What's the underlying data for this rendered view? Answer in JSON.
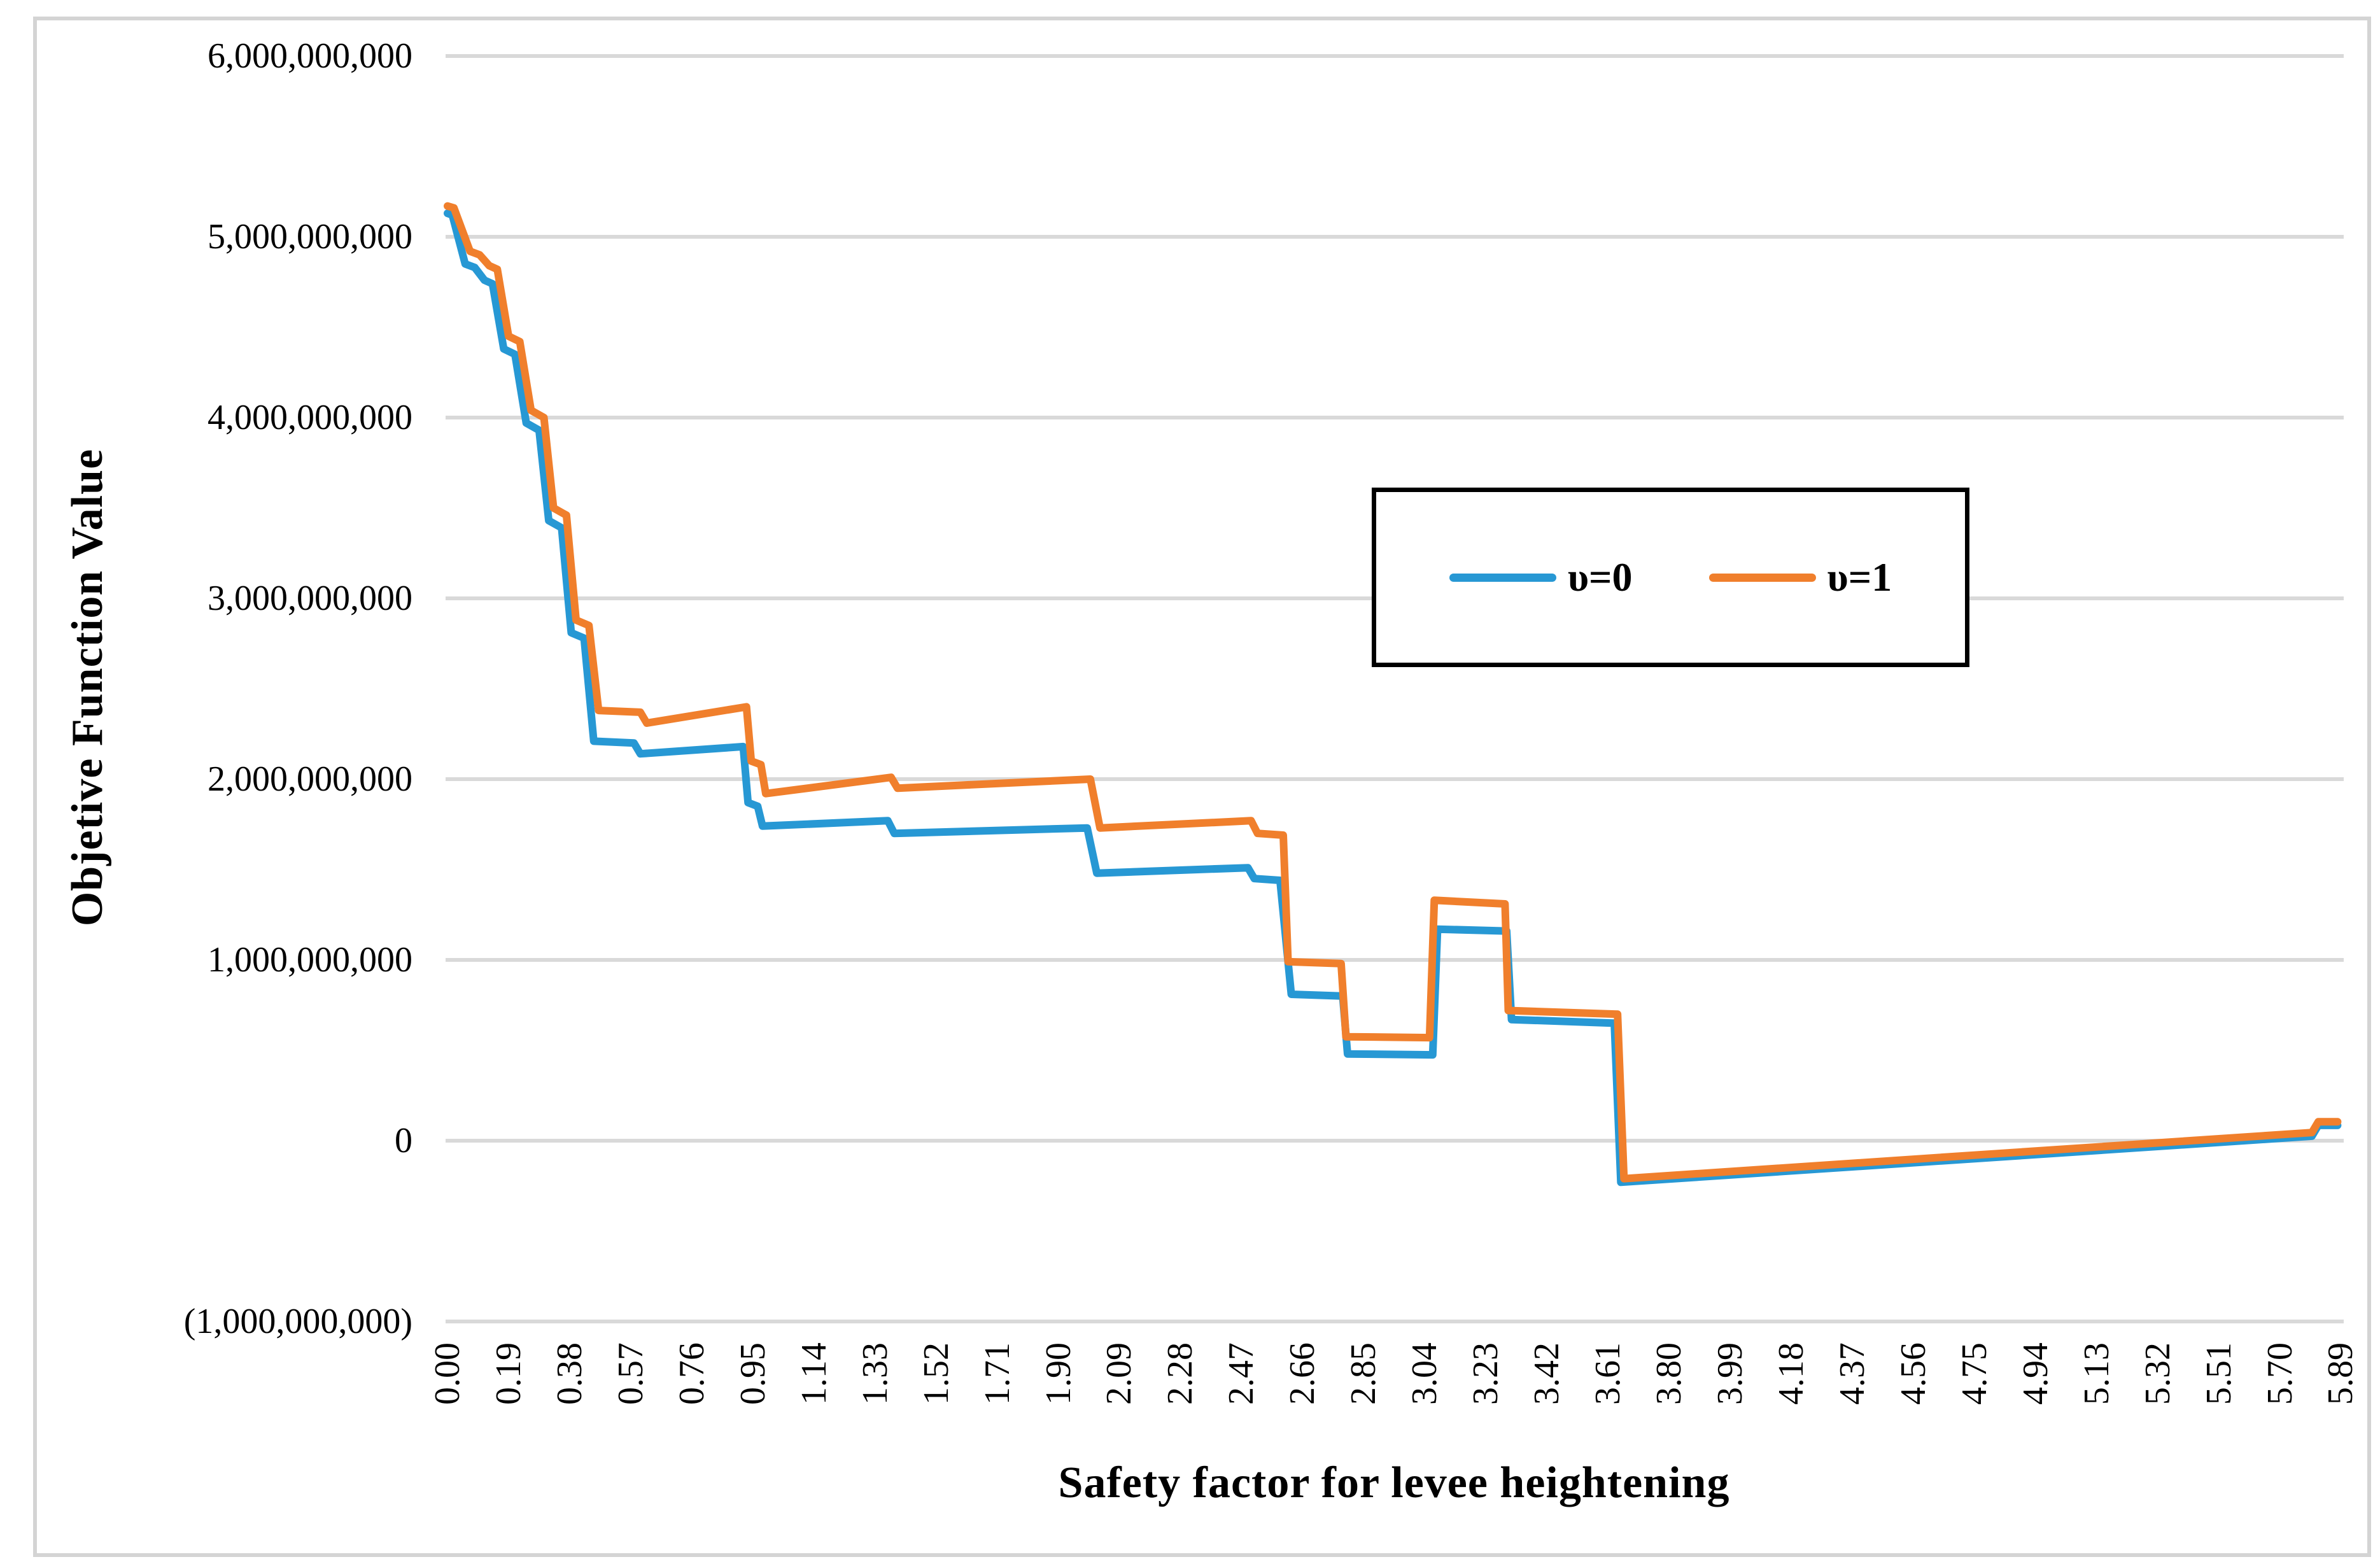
{
  "figure": {
    "y_axis_title": "Objetive Function Value",
    "x_axis_title": "Safety factor for levee heightening"
  },
  "legend": {
    "items": [
      {
        "label": "υ=0",
        "color": "#2798d4"
      },
      {
        "label": "υ=1",
        "color": "#f07f2c"
      }
    ]
  },
  "axes": {
    "y": {
      "ticks": [
        {
          "value": 6,
          "label": "6,000,000,000"
        },
        {
          "value": 5,
          "label": "5,000,000,000"
        },
        {
          "value": 4,
          "label": "4,000,000,000"
        },
        {
          "value": 3,
          "label": "3,000,000,000"
        },
        {
          "value": 2,
          "label": "2,000,000,000"
        },
        {
          "value": 1,
          "label": "1,000,000,000"
        },
        {
          "value": 0,
          "label": "0"
        },
        {
          "value": -1,
          "label": "(1,000,000,000)"
        }
      ]
    },
    "x": {
      "ticks": [
        {
          "value": 0.0,
          "label": "0.00"
        },
        {
          "value": 0.19,
          "label": "0.19"
        },
        {
          "value": 0.38,
          "label": "0.38"
        },
        {
          "value": 0.57,
          "label": "0.57"
        },
        {
          "value": 0.76,
          "label": "0.76"
        },
        {
          "value": 0.95,
          "label": "0.95"
        },
        {
          "value": 1.14,
          "label": "1.14"
        },
        {
          "value": 1.33,
          "label": "1.33"
        },
        {
          "value": 1.52,
          "label": "1.52"
        },
        {
          "value": 1.71,
          "label": "1.71"
        },
        {
          "value": 1.9,
          "label": "1.90"
        },
        {
          "value": 2.09,
          "label": "2.09"
        },
        {
          "value": 2.28,
          "label": "2.28"
        },
        {
          "value": 2.47,
          "label": "2.47"
        },
        {
          "value": 2.66,
          "label": "2.66"
        },
        {
          "value": 2.85,
          "label": "2.85"
        },
        {
          "value": 3.04,
          "label": "3.04"
        },
        {
          "value": 3.23,
          "label": "3.23"
        },
        {
          "value": 3.42,
          "label": "3.42"
        },
        {
          "value": 3.61,
          "label": "3.61"
        },
        {
          "value": 3.8,
          "label": "3.80"
        },
        {
          "value": 3.99,
          "label": "3.99"
        },
        {
          "value": 4.18,
          "label": "4.18"
        },
        {
          "value": 4.37,
          "label": "4.37"
        },
        {
          "value": 4.56,
          "label": "4.56"
        },
        {
          "value": 4.75,
          "label": "4.75"
        },
        {
          "value": 4.94,
          "label": "4.94"
        },
        {
          "value": 5.13,
          "label": "5.13"
        },
        {
          "value": 5.32,
          "label": "5.32"
        },
        {
          "value": 5.51,
          "label": "5.51"
        },
        {
          "value": 5.7,
          "label": "5.70"
        },
        {
          "value": 5.89,
          "label": "5.89"
        }
      ]
    }
  },
  "chart_data": {
    "type": "line",
    "title": "",
    "xlabel": "Safety factor for levee heightening",
    "ylabel": "Objetive Function Value",
    "xlim": [
      0,
      5.95
    ],
    "ylim": [
      -1000000000,
      6000000000
    ],
    "y_unit_scale": 1000000000,
    "gridlines": "horizontal, every 1,000,000,000",
    "legend_position": "inside upper right, boxed",
    "note": "step-shaped curves; y values below are in billions",
    "gridline_color": "#d9d9d9",
    "series": [
      {
        "name": "υ=0",
        "color": "#2798d4",
        "points": [
          [
            0.0,
            5.13
          ],
          [
            0.015,
            5.12
          ],
          [
            0.055,
            4.85
          ],
          [
            0.085,
            4.83
          ],
          [
            0.115,
            4.76
          ],
          [
            0.14,
            4.74
          ],
          [
            0.175,
            4.38
          ],
          [
            0.21,
            4.35
          ],
          [
            0.245,
            3.97
          ],
          [
            0.285,
            3.93
          ],
          [
            0.315,
            3.43
          ],
          [
            0.355,
            3.39
          ],
          [
            0.385,
            2.81
          ],
          [
            0.425,
            2.78
          ],
          [
            0.455,
            2.21
          ],
          [
            0.58,
            2.2
          ],
          [
            0.6,
            2.14
          ],
          [
            0.92,
            2.18
          ],
          [
            0.935,
            1.87
          ],
          [
            0.965,
            1.85
          ],
          [
            0.98,
            1.74
          ],
          [
            1.37,
            1.77
          ],
          [
            1.39,
            1.7
          ],
          [
            1.99,
            1.73
          ],
          [
            2.02,
            1.48
          ],
          [
            2.49,
            1.51
          ],
          [
            2.51,
            1.45
          ],
          [
            2.59,
            1.44
          ],
          [
            2.625,
            0.81
          ],
          [
            2.785,
            0.8
          ],
          [
            2.8,
            0.48
          ],
          [
            3.065,
            0.475
          ],
          [
            3.08,
            1.17
          ],
          [
            3.295,
            1.16
          ],
          [
            3.31,
            0.67
          ],
          [
            3.63,
            0.65
          ],
          [
            3.65,
            -0.23
          ],
          [
            5.8,
            0.025
          ],
          [
            5.82,
            0.085
          ],
          [
            5.88,
            0.085
          ]
        ]
      },
      {
        "name": "υ=1",
        "color": "#f07f2c",
        "points": [
          [
            0.0,
            5.17
          ],
          [
            0.02,
            5.16
          ],
          [
            0.07,
            4.92
          ],
          [
            0.1,
            4.9
          ],
          [
            0.13,
            4.84
          ],
          [
            0.155,
            4.82
          ],
          [
            0.19,
            4.45
          ],
          [
            0.225,
            4.42
          ],
          [
            0.26,
            4.04
          ],
          [
            0.3,
            4.0
          ],
          [
            0.33,
            3.5
          ],
          [
            0.37,
            3.46
          ],
          [
            0.4,
            2.88
          ],
          [
            0.44,
            2.85
          ],
          [
            0.47,
            2.38
          ],
          [
            0.6,
            2.37
          ],
          [
            0.62,
            2.31
          ],
          [
            0.93,
            2.4
          ],
          [
            0.945,
            2.1
          ],
          [
            0.975,
            2.08
          ],
          [
            0.99,
            1.92
          ],
          [
            1.38,
            2.01
          ],
          [
            1.4,
            1.95
          ],
          [
            2.0,
            2.0
          ],
          [
            2.03,
            1.73
          ],
          [
            2.5,
            1.77
          ],
          [
            2.52,
            1.7
          ],
          [
            2.6,
            1.69
          ],
          [
            2.615,
            0.99
          ],
          [
            2.78,
            0.98
          ],
          [
            2.795,
            0.575
          ],
          [
            3.055,
            0.57
          ],
          [
            3.07,
            1.33
          ],
          [
            3.29,
            1.31
          ],
          [
            3.3,
            0.72
          ],
          [
            3.64,
            0.7
          ],
          [
            3.66,
            -0.21
          ],
          [
            5.8,
            0.045
          ],
          [
            5.82,
            0.105
          ],
          [
            5.88,
            0.105
          ]
        ]
      }
    ]
  }
}
